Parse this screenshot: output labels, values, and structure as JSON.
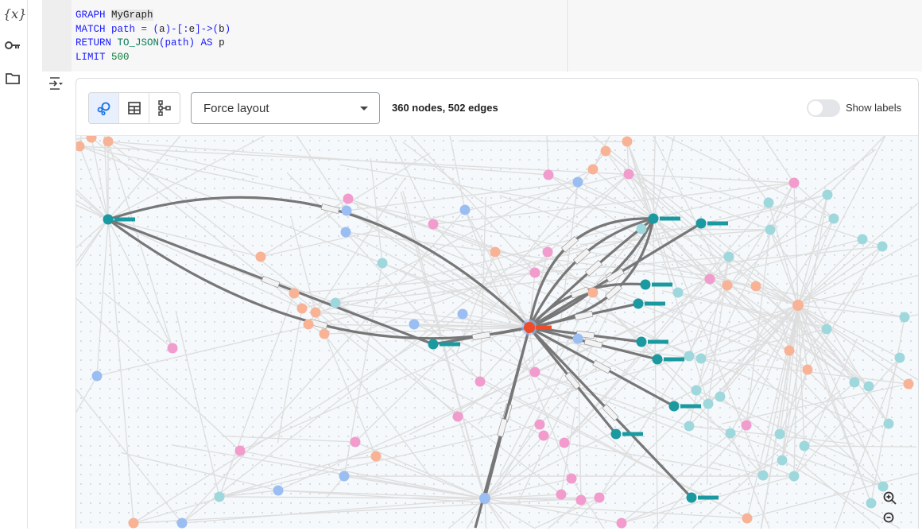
{
  "sidebar": {
    "icons": [
      {
        "name": "variables-icon",
        "glyph": "{x}"
      },
      {
        "name": "key-icon",
        "glyph": "⚿"
      },
      {
        "name": "folder-icon",
        "glyph": "🗀"
      }
    ]
  },
  "code": {
    "lines": [
      [
        {
          "t": "GRAPH ",
          "c": "kw"
        },
        {
          "t": "MyGraph",
          "c": "id hl"
        }
      ],
      [
        {
          "t": "MATCH ",
          "c": "kw"
        },
        {
          "t": "path ",
          "c": "kw"
        },
        {
          "t": "= ",
          "c": "op"
        },
        {
          "t": "(",
          "c": "kw"
        },
        {
          "t": "a",
          "c": "id"
        },
        {
          "t": ")-[:",
          "c": "kw"
        },
        {
          "t": "e",
          "c": "id"
        },
        {
          "t": "]->(",
          "c": "kw"
        },
        {
          "t": "b",
          "c": "id"
        },
        {
          "t": ")",
          "c": "kw"
        }
      ],
      [
        {
          "t": "RETURN ",
          "c": "kw"
        },
        {
          "t": "TO_JSON",
          "c": "fn"
        },
        {
          "t": "(path) ",
          "c": "kw"
        },
        {
          "t": "AS ",
          "c": "kw"
        },
        {
          "t": "p",
          "c": "id"
        }
      ],
      [
        {
          "t": "LIMIT ",
          "c": "kw"
        },
        {
          "t": "500",
          "c": "num"
        }
      ]
    ]
  },
  "toolbar": {
    "views": [
      {
        "name": "graph-view-button",
        "active": true
      },
      {
        "name": "table-view-button",
        "active": false
      },
      {
        "name": "schema-view-button",
        "active": false
      }
    ],
    "layout_select": "Force layout",
    "stats": "360 nodes, 502 edges",
    "show_labels": {
      "label": "Show labels",
      "on": false
    }
  },
  "graph": {
    "colors": {
      "hub": "#ee4d2a",
      "dark": "#1a9aa0",
      "light_teal": "#9fd8dc",
      "peach": "#f8b396",
      "pink": "#f19ccd",
      "blue": "#9bbef2",
      "edge_dark": "#777777",
      "edge_light": "#dedede"
    }
  }
}
